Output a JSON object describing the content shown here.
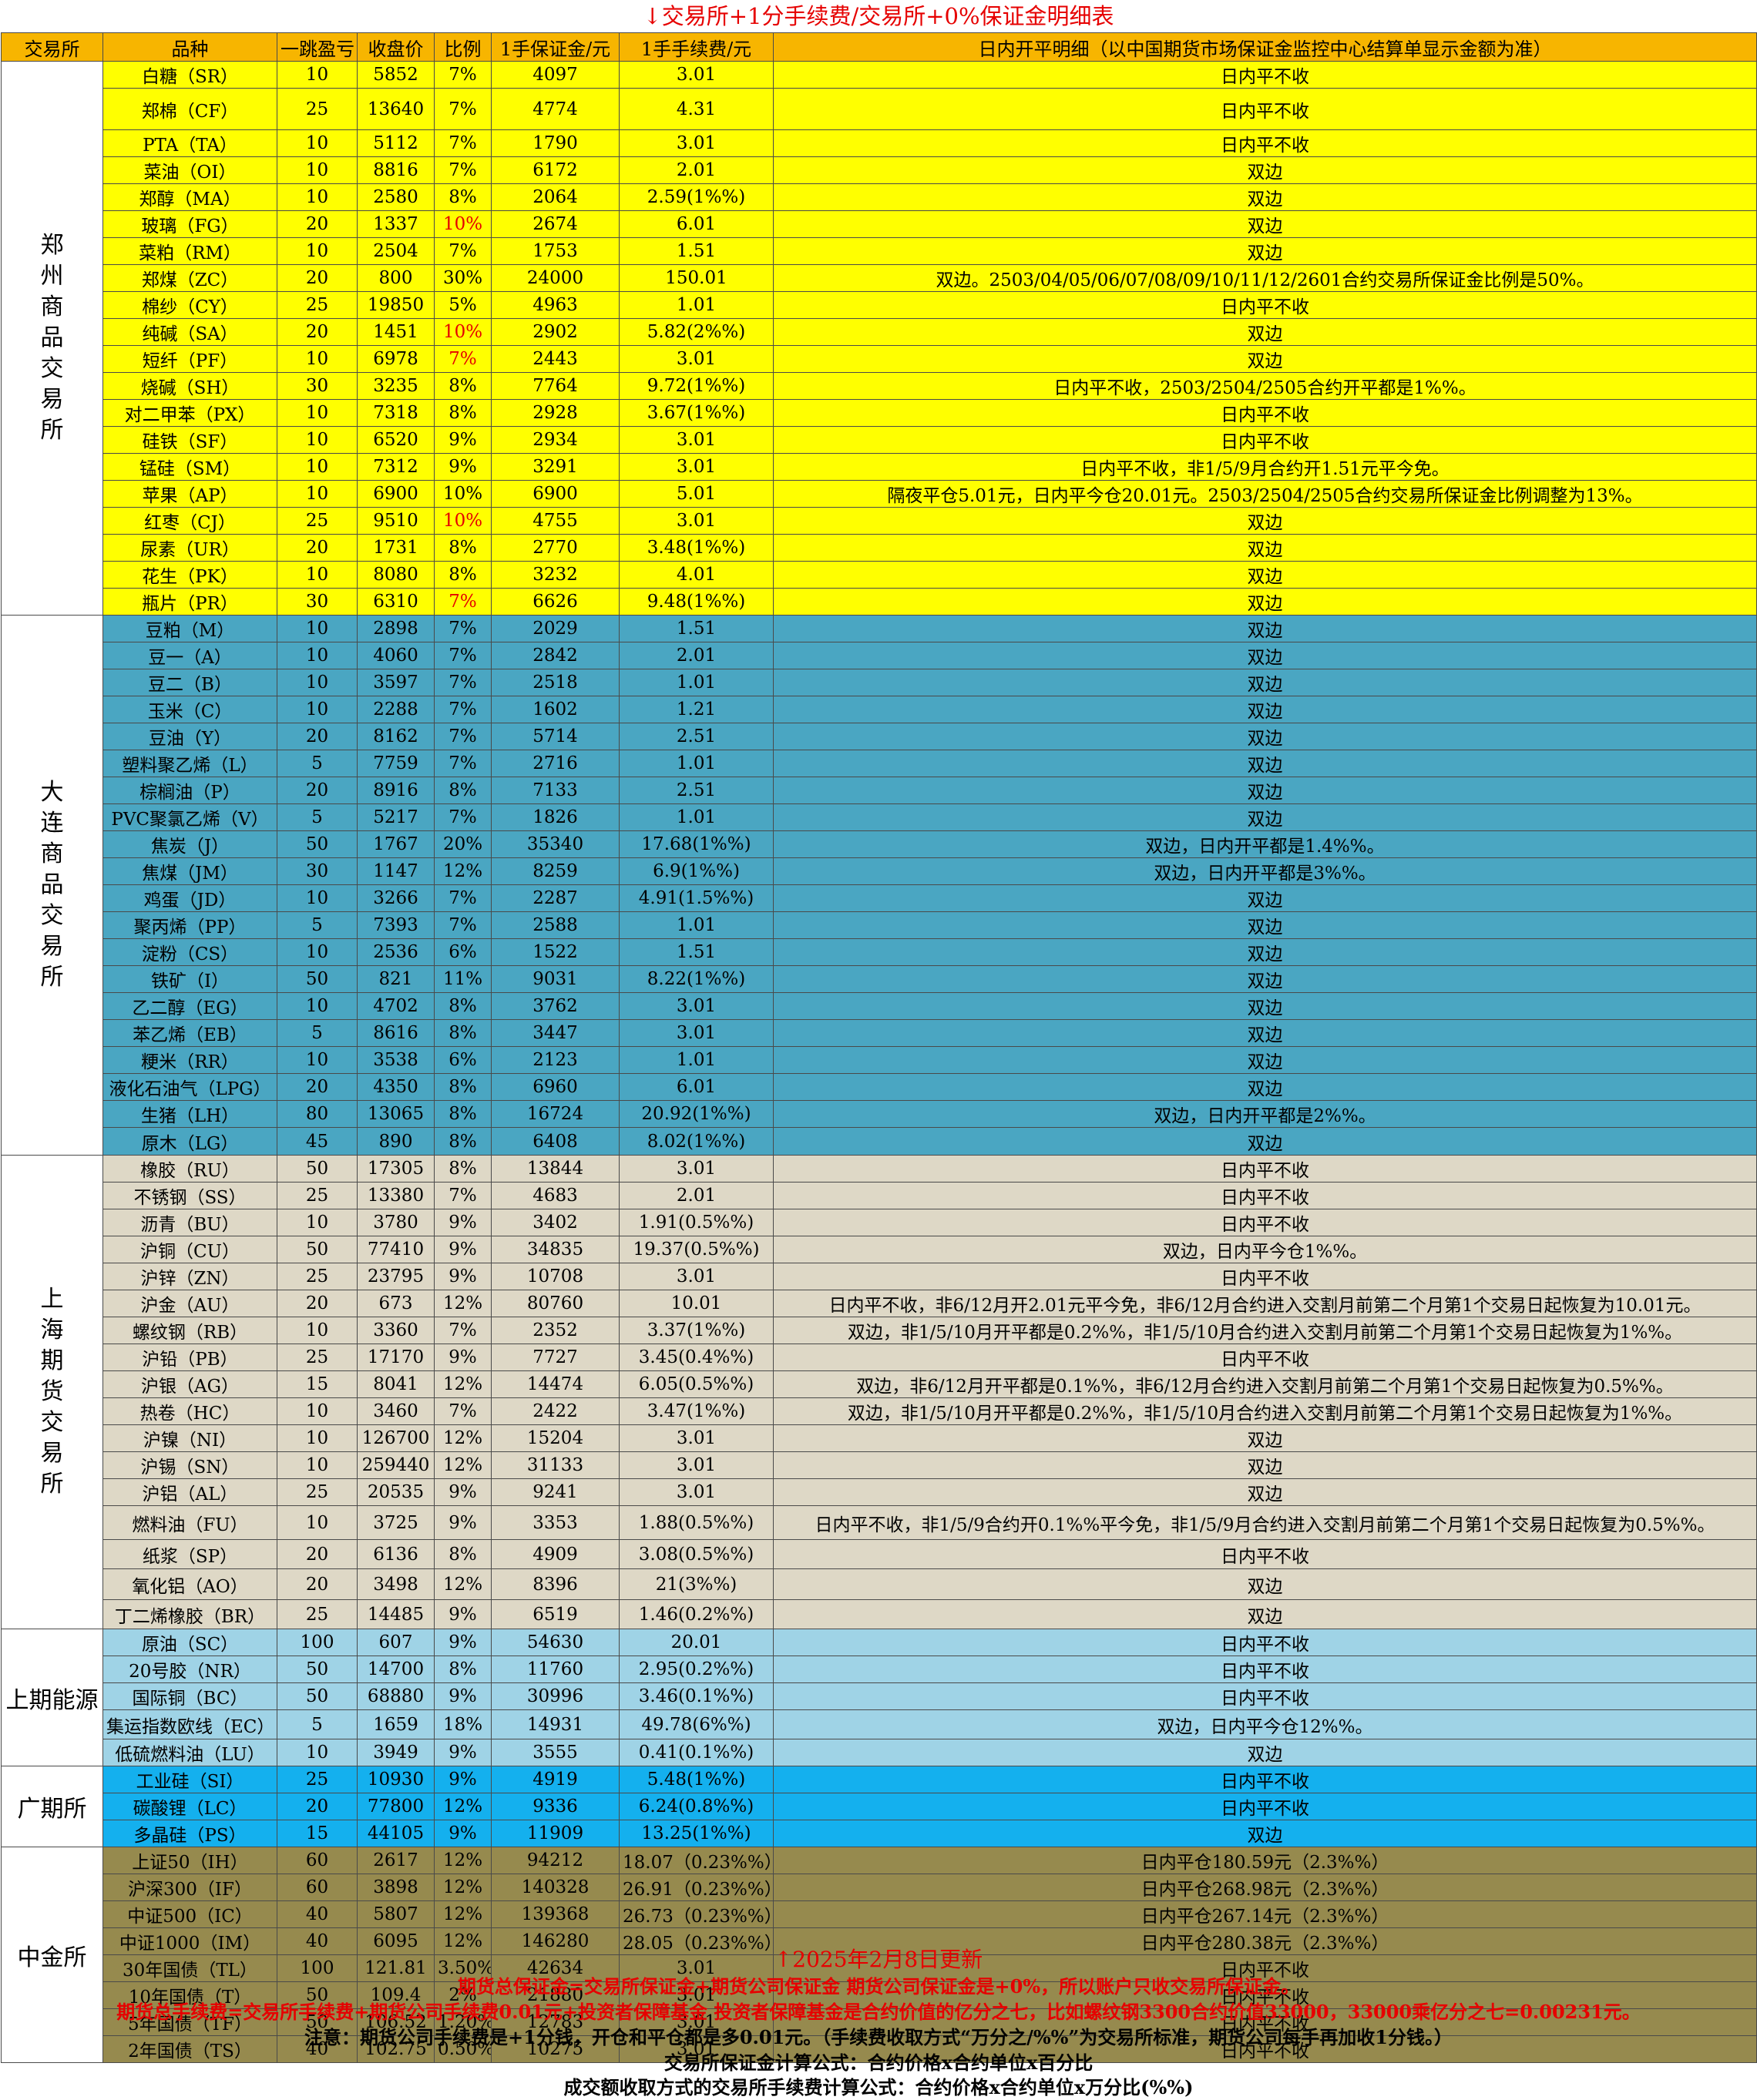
{
  "title": "↓交易所+1分手续费/交易所+0%保证金明细表",
  "headers": [
    "交易所",
    "品种",
    "一跳盈亏",
    "收盘价",
    "比例",
    "1手保证金/元",
    "1手手续费/元",
    "日内开平明细（以中国期货市场保证金监控中心结算单显示金额为准）"
  ],
  "exchanges": {
    "zz": [
      "郑",
      "州",
      "商",
      "品",
      "交",
      "易",
      "所"
    ],
    "dl": [
      "大",
      "连",
      "商",
      "品",
      "交",
      "易",
      "所"
    ],
    "sh": [
      "上",
      "海",
      "期",
      "货",
      "交",
      "易",
      "所"
    ],
    "ine": "上期能源",
    "gz": "广期所",
    "cf": "中金所"
  },
  "rows": [
    [
      "白糖（SR）",
      "10",
      "5852",
      "7%",
      "4097",
      "3.01",
      "日内平不收"
    ],
    [
      "郑棉（CF）",
      "25",
      "13640",
      "7%",
      "4774",
      "4.31",
      "日内平不收"
    ],
    [
      "PTA（TA）",
      "10",
      "5112",
      "7%",
      "1790",
      "3.01",
      "日内平不收"
    ],
    [
      "菜油（OI）",
      "10",
      "8816",
      "7%",
      "6172",
      "2.01",
      "双边"
    ],
    [
      "郑醇（MA）",
      "10",
      "2580",
      "8%",
      "2064",
      "2.59(1%%)",
      "双边"
    ],
    [
      "玻璃（FG）",
      "20",
      "1337",
      "10%",
      "2674",
      "6.01",
      "双边"
    ],
    [
      "菜粕（RM）",
      "10",
      "2504",
      "7%",
      "1753",
      "1.51",
      "双边"
    ],
    [
      "郑煤（ZC）",
      "20",
      "800",
      "30%",
      "24000",
      "150.01",
      "双边。2503/04/05/06/07/08/09/10/11/12/2601合约交易所保证金比例是50%。"
    ],
    [
      "棉纱（CY）",
      "25",
      "19850",
      "5%",
      "4963",
      "1.01",
      "日内平不收"
    ],
    [
      "纯碱（SA）",
      "20",
      "1451",
      "10%",
      "2902",
      "5.82(2%%)",
      "双边"
    ],
    [
      "短纤（PF）",
      "10",
      "6978",
      "7%",
      "2443",
      "3.01",
      "双边"
    ],
    [
      "烧碱（SH）",
      "30",
      "3235",
      "8%",
      "7764",
      "9.72(1%%)",
      "日内平不收，2503/2504/2505合约开平都是1%%。"
    ],
    [
      "对二甲苯（PX）",
      "10",
      "7318",
      "8%",
      "2928",
      "3.67(1%%)",
      "日内平不收"
    ],
    [
      "硅铁（SF）",
      "10",
      "6520",
      "9%",
      "2934",
      "3.01",
      "日内平不收"
    ],
    [
      "锰硅（SM）",
      "10",
      "7312",
      "9%",
      "3291",
      "3.01",
      "日内平不收，非1/5/9月合约开1.51元平今免。"
    ],
    [
      "苹果（AP）",
      "10",
      "6900",
      "10%",
      "6900",
      "5.01",
      "隔夜平仓5.01元，日内平今仓20.01元。2503/2504/2505合约交易所保证金比例调整为13%。"
    ],
    [
      "红枣（CJ）",
      "25",
      "9510",
      "10%",
      "4755",
      "3.01",
      "双边"
    ],
    [
      "尿素（UR）",
      "20",
      "1731",
      "8%",
      "2770",
      "3.48(1%%)",
      "双边"
    ],
    [
      "花生（PK）",
      "10",
      "8080",
      "8%",
      "3232",
      "4.01",
      "双边"
    ],
    [
      "瓶片（PR）",
      "30",
      "6310",
      "7%",
      "6626",
      "9.48(1%%)",
      "双边"
    ],
    [
      "豆粕（M）",
      "10",
      "2898",
      "7%",
      "2029",
      "1.51",
      "双边"
    ],
    [
      "豆一（A）",
      "10",
      "4060",
      "7%",
      "2842",
      "2.01",
      "双边"
    ],
    [
      "豆二（B）",
      "10",
      "3597",
      "7%",
      "2518",
      "1.01",
      "双边"
    ],
    [
      "玉米（C）",
      "10",
      "2288",
      "7%",
      "1602",
      "1.21",
      "双边"
    ],
    [
      "豆油（Y）",
      "20",
      "8162",
      "7%",
      "5714",
      "2.51",
      "双边"
    ],
    [
      "塑料聚乙烯（L）",
      "5",
      "7759",
      "7%",
      "2716",
      "1.01",
      "双边"
    ],
    [
      "棕榈油（P）",
      "20",
      "8916",
      "8%",
      "7133",
      "2.51",
      "双边"
    ],
    [
      "PVC聚氯乙烯（V）",
      "5",
      "5217",
      "7%",
      "1826",
      "1.01",
      "双边"
    ],
    [
      "焦炭（J）",
      "50",
      "1767",
      "20%",
      "35340",
      "17.68(1%%)",
      "双边，日内开平都是1.4%%。"
    ],
    [
      "焦煤（JM）",
      "30",
      "1147",
      "12%",
      "8259",
      "6.9(1%%)",
      "双边，日内开平都是3%%。"
    ],
    [
      "鸡蛋（JD）",
      "10",
      "3266",
      "7%",
      "2287",
      "4.91(1.5%%)",
      "双边"
    ],
    [
      "聚丙烯（PP）",
      "5",
      "7393",
      "7%",
      "2588",
      "1.01",
      "双边"
    ],
    [
      "淀粉（CS）",
      "10",
      "2536",
      "6%",
      "1522",
      "1.51",
      "双边"
    ],
    [
      "铁矿（I）",
      "50",
      "821",
      "11%",
      "9031",
      "8.22(1%%)",
      "双边"
    ],
    [
      "乙二醇（EG）",
      "10",
      "4702",
      "8%",
      "3762",
      "3.01",
      "双边"
    ],
    [
      "苯乙烯（EB）",
      "5",
      "8616",
      "8%",
      "3447",
      "3.01",
      "双边"
    ],
    [
      "粳米（RR）",
      "10",
      "3538",
      "6%",
      "2123",
      "1.01",
      "双边"
    ],
    [
      "液化石油气（LPG）",
      "20",
      "4350",
      "8%",
      "6960",
      "6.01",
      "双边"
    ],
    [
      "生猪（LH）",
      "80",
      "13065",
      "8%",
      "16724",
      "20.92(1%%)",
      "双边，日内开平都是2%%。"
    ],
    [
      "原木（LG）",
      "45",
      "890",
      "8%",
      "6408",
      "8.02(1%%)",
      "双边"
    ],
    [
      "橡胶（RU）",
      "50",
      "17305",
      "8%",
      "13844",
      "3.01",
      "日内平不收"
    ],
    [
      "不锈钢（SS）",
      "25",
      "13380",
      "7%",
      "4683",
      "2.01",
      "日内平不收"
    ],
    [
      "沥青（BU）",
      "10",
      "3780",
      "9%",
      "3402",
      "1.91(0.5%%)",
      "日内平不收"
    ],
    [
      "沪铜（CU）",
      "50",
      "77410",
      "9%",
      "34835",
      "19.37(0.5%%)",
      "双边，日内平今仓1%%。"
    ],
    [
      "沪锌（ZN）",
      "25",
      "23795",
      "9%",
      "10708",
      "3.01",
      "日内平不收"
    ],
    [
      "沪金（AU）",
      "20",
      "673",
      "12%",
      "80760",
      "10.01",
      "日内平不收，非6/12月开2.01元平今免，非6/12月合约进入交割月前第二个月第1个交易日起恢复为10.01元。"
    ],
    [
      "螺纹钢（RB）",
      "10",
      "3360",
      "7%",
      "2352",
      "3.37(1%%)",
      "双边，非1/5/10月开平都是0.2%%，非1/5/10月合约进入交割月前第二个月第1个交易日起恢复为1%%。"
    ],
    [
      "沪铅（PB）",
      "25",
      "17170",
      "9%",
      "7727",
      "3.45(0.4%%)",
      "日内平不收"
    ],
    [
      "沪银（AG）",
      "15",
      "8041",
      "12%",
      "14474",
      "6.05(0.5%%)",
      "双边，非6/12月开平都是0.1%%，非6/12月合约进入交割月前第二个月第1个交易日起恢复为0.5%%。"
    ],
    [
      "热卷（HC）",
      "10",
      "3460",
      "7%",
      "2422",
      "3.47(1%%)",
      "双边，非1/5/10月开平都是0.2%%，非1/5/10月合约进入交割月前第二个月第1个交易日起恢复为1%%。"
    ],
    [
      "沪镍（NI）",
      "10",
      "126700",
      "12%",
      "15204",
      "3.01",
      "双边"
    ],
    [
      "沪锡（SN）",
      "10",
      "259440",
      "12%",
      "31133",
      "3.01",
      "双边"
    ],
    [
      "沪铝（AL）",
      "25",
      "20535",
      "9%",
      "9241",
      "3.01",
      "双边"
    ],
    [
      "燃料油（FU）",
      "10",
      "3725",
      "9%",
      "3353",
      "1.88(0.5%%)",
      "日内平不收，非1/5/9合约开0.1%%平今免，非1/5/9月合约进入交割月前第二个月第1个交易日起恢复为0.5%%。"
    ],
    [
      "纸浆（SP）",
      "20",
      "6136",
      "8%",
      "4909",
      "3.08(0.5%%)",
      "日内平不收"
    ],
    [
      "氧化铝（AO）",
      "20",
      "3498",
      "12%",
      "8396",
      "21(3%%)",
      "双边"
    ],
    [
      "丁二烯橡胶（BR）",
      "25",
      "14485",
      "9%",
      "6519",
      "1.46(0.2%%)",
      "双边"
    ],
    [
      "原油（SC）",
      "100",
      "607",
      "9%",
      "54630",
      "20.01",
      "日内平不收"
    ],
    [
      "20号胶（NR）",
      "50",
      "14700",
      "8%",
      "11760",
      "2.95(0.2%%)",
      "日内平不收"
    ],
    [
      "国际铜（BC）",
      "50",
      "68880",
      "9%",
      "30996",
      "3.46(0.1%%)",
      "日内平不收"
    ],
    [
      "集运指数欧线（EC）",
      "5",
      "1659",
      "18%",
      "14931",
      "49.78(6%%)",
      "双边，日内平今仓12%%。"
    ],
    [
      "低硫燃料油（LU）",
      "10",
      "3949",
      "9%",
      "3555",
      "0.41(0.1%%)",
      "双边"
    ],
    [
      "工业硅（SI）",
      "25",
      "10930",
      "9%",
      "4919",
      "5.48(1%%)",
      "日内平不收"
    ],
    [
      "碳酸锂（LC）",
      "20",
      "77800",
      "12%",
      "9336",
      "6.24(0.8%%)",
      "日内平不收"
    ],
    [
      "多晶硅（PS）",
      "15",
      "44105",
      "9%",
      "11909",
      "13.25(1%%)",
      "双边"
    ],
    [
      "上证50（IH）",
      "60",
      "2617",
      "12%",
      "94212",
      "18.07（0.23%%）",
      "日内平仓180.59元（2.3%%）"
    ],
    [
      "沪深300（IF）",
      "60",
      "3898",
      "12%",
      "140328",
      "26.91（0.23%%）",
      "日内平仓268.98元（2.3%%）"
    ],
    [
      "中证500（IC）",
      "40",
      "5807",
      "12%",
      "139368",
      "26.73（0.23%%）",
      "日内平仓267.14元（2.3%%）"
    ],
    [
      "中证1000（IM）",
      "40",
      "6095",
      "12%",
      "146280",
      "28.05（0.23%%）",
      "日内平仓280.38元（2.3%%）"
    ],
    [
      "30年国债（TL）",
      "100",
      "121.81",
      "3.50%",
      "42634",
      "3.01",
      "日内平不收"
    ],
    [
      "10年国债（T）",
      "50",
      "109.4",
      "2%",
      "21880",
      "3.01",
      "日内平不收"
    ],
    [
      "5年国债（TF）",
      "50",
      "106.52",
      "1.20%",
      "12783",
      "3.01",
      "日内平不收"
    ],
    [
      "2年国债（TS）",
      "40",
      "102.75",
      "0.50%",
      "10275",
      "3.01",
      "日内平不收"
    ]
  ],
  "footer": {
    "updated": "↑2025年2月8日更新",
    "line1": "期货总保证金=交易所保证金+期货公司保证金 期货公司保证金是+0%，所以账户只收交易所保证金。",
    "line2": "期货总手续费=交易所手续费+期货公司手续费0.01元+投资者保障基金 投资者保障基金是合约价值的亿分之七，比如螺纹钢3300合约价值33000，33000乘亿分之七=0.00231元。",
    "line3": "注意：期货公司手续费是+1分钱，开仓和平仓都是多0.01元。（手续费收取方式“万分之/%%”为交易所标准，期货公司每手再加收1分钱。）",
    "line4": "交易所保证金计算公式：合约价格x合约单位x百分比",
    "line5": "成交额收取方式的交易所手续费计算公式：合约价格x合约单位x万分比(%%)"
  },
  "colors": {
    "header": "#f7b500",
    "zhengzhou": "#ffff00",
    "dalian": "#4aa6c2",
    "shanghai": "#ded8c6",
    "ine": "#9fd3e6",
    "guangzhou": "#14b0ee",
    "cffex": "#968a4e",
    "red_text": "#e60000"
  }
}
